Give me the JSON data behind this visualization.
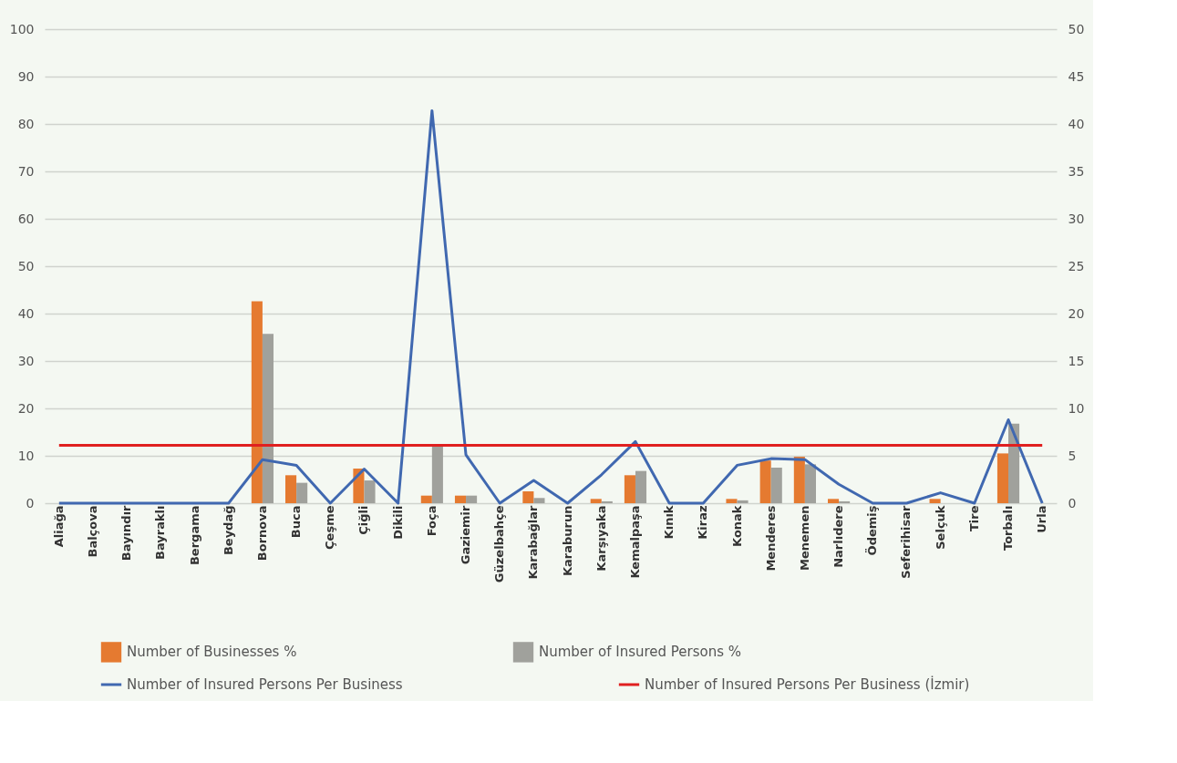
{
  "chart_data": {
    "type": "bar",
    "categories": [
      "Aliağa",
      "Balçova",
      "Bayındır",
      "Bayraklı",
      "Bergama",
      "Beydağ",
      "Bornova",
      "Buca",
      "Çeşme",
      "Çiğli",
      "Dikili",
      "Foça",
      "Gaziemir",
      "Güzelbahçe",
      "Karabağlar",
      "Karaburun",
      "Karşıyaka",
      "Kemalpaşa",
      "Kınık",
      "Kiraz",
      "Konak",
      "Menderes",
      "Menemen",
      "Narlıdere",
      "Ödemiş",
      "Seferihisar",
      "Selçuk",
      "Tire",
      "Torbalı",
      "Urla"
    ],
    "series": [
      {
        "name": "Number of Businesses  %",
        "color": "#e57a30",
        "values": [
          0,
          0,
          0,
          0,
          0,
          0,
          42.6,
          5.9,
          0,
          7.3,
          0,
          1.6,
          1.6,
          0,
          2.5,
          0,
          0.9,
          5.9,
          0,
          0,
          0.9,
          9.0,
          9.8,
          0.9,
          0,
          0,
          0.9,
          0,
          10.5,
          0
        ]
      },
      {
        "name": "Number of Insured Persons %",
        "color": "#a0a19c",
        "values": [
          0,
          0,
          0,
          0,
          0,
          0,
          35.7,
          4.3,
          0,
          4.8,
          0,
          12.3,
          1.6,
          0,
          1.1,
          0,
          0.4,
          6.8,
          0,
          0,
          0.6,
          7.5,
          8.2,
          0.4,
          0,
          0,
          null,
          0,
          16.8,
          0
        ]
      },
      {
        "name": "Number of Insured Persons Per Business",
        "type": "line",
        "axis": "y2",
        "color": "#4068b0",
        "values": [
          0,
          0,
          0,
          0,
          0,
          0,
          4.6,
          4.0,
          0,
          3.6,
          0,
          41.4,
          5.1,
          0,
          2.4,
          0,
          3.0,
          6.5,
          0,
          0,
          4.0,
          4.7,
          4.6,
          2.0,
          0,
          0,
          1.1,
          0,
          8.8,
          0
        ]
      },
      {
        "name": "Number of Insured Persons Per Business (İzmir)",
        "type": "line",
        "axis": "y2",
        "color": "#e02020",
        "values": [
          6.1,
          6.1,
          6.1,
          6.1,
          6.1,
          6.1,
          6.1,
          6.1,
          6.1,
          6.1,
          6.1,
          6.1,
          6.1,
          6.1,
          6.1,
          6.1,
          6.1,
          6.1,
          6.1,
          6.1,
          6.1,
          6.1,
          6.1,
          6.1,
          6.1,
          6.1,
          6.1,
          6.1,
          6.1,
          6.1
        ]
      }
    ],
    "ylim": [
      0,
      100
    ],
    "yticks": [
      0,
      10,
      20,
      30,
      40,
      50,
      60,
      70,
      80,
      90,
      100
    ],
    "y2lim": [
      0,
      50
    ],
    "y2ticks": [
      0,
      5,
      10,
      15,
      20,
      25,
      30,
      35,
      40,
      45,
      50
    ],
    "grid": "y",
    "legend": "bottom"
  }
}
